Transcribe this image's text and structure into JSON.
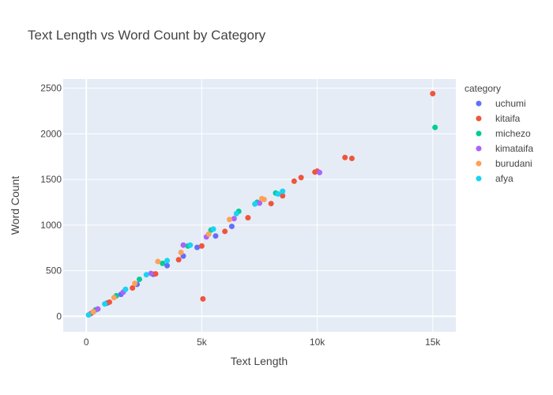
{
  "chart_data": {
    "type": "scatter",
    "title": "Text Length vs Word Count by Category",
    "xlabel": "Text Length",
    "ylabel": "Word Count",
    "xlim": [
      -1000,
      16000
    ],
    "ylim": [
      -170,
      2600
    ],
    "xticks": [
      0,
      5000,
      10000,
      15000
    ],
    "xtick_labels": [
      "0",
      "5k",
      "10k",
      "15k"
    ],
    "yticks": [
      0,
      500,
      1000,
      1500,
      2000,
      2500
    ],
    "ytick_labels": [
      "0",
      "500",
      "1000",
      "1500",
      "2000",
      "2500"
    ],
    "grid": true,
    "legend": {
      "title": "category",
      "position": "right"
    },
    "series": [
      {
        "name": "uchumi",
        "color": "#636efa",
        "x": [
          300,
          900,
          1500,
          2200,
          2900,
          3500,
          4200,
          4800,
          5600,
          6300
        ],
        "y": [
          48,
          145,
          240,
          350,
          460,
          555,
          660,
          755,
          880,
          985
        ]
      },
      {
        "name": "kitaifa",
        "color": "#EF553B",
        "x": [
          200,
          1000,
          2000,
          3000,
          4000,
          5000,
          5050,
          6000,
          7000,
          8000,
          8500,
          9000,
          9300,
          9900,
          10000,
          11200,
          11500,
          15000
        ],
        "y": [
          30,
          155,
          310,
          465,
          620,
          770,
          190,
          930,
          1080,
          1235,
          1320,
          1480,
          1520,
          1580,
          1590,
          1740,
          1730,
          2440
        ]
      },
      {
        "name": "michezo",
        "color": "#00cc96",
        "x": [
          400,
          1300,
          2300,
          3300,
          4400,
          5400,
          6600,
          7400,
          8200,
          15100
        ],
        "y": [
          70,
          225,
          405,
          580,
          770,
          945,
          1150,
          1250,
          1350,
          2070
        ]
      },
      {
        "name": "kimataifa",
        "color": "#ab63fa",
        "x": [
          500,
          1600,
          2800,
          4200,
          5200,
          6400,
          7500,
          10100
        ],
        "y": [
          80,
          265,
          470,
          780,
          870,
          1070,
          1240,
          1575
        ]
      },
      {
        "name": "burudani",
        "color": "#FFA15A",
        "x": [
          300,
          1200,
          2100,
          3100,
          4100,
          5300,
          6200,
          7600,
          7700
        ],
        "y": [
          50,
          205,
          360,
          600,
          700,
          900,
          1060,
          1290,
          1280
        ]
      },
      {
        "name": "afya",
        "color": "#19d3f3",
        "x": [
          100,
          800,
          1700,
          2600,
          3500,
          4500,
          5500,
          6500,
          7300,
          8300,
          8500
        ],
        "y": [
          15,
          135,
          295,
          455,
          610,
          780,
          955,
          1125,
          1230,
          1340,
          1370
        ]
      }
    ]
  }
}
